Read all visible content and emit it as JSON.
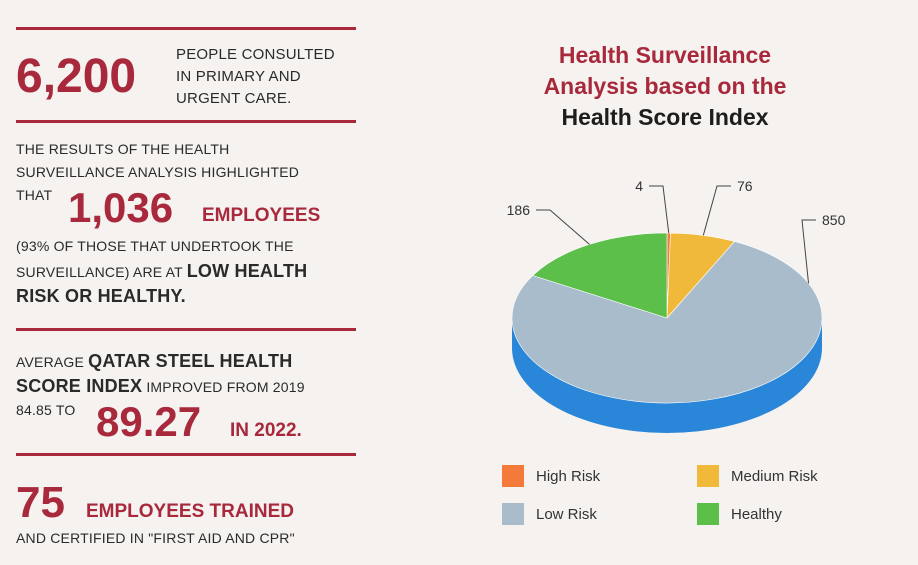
{
  "stats": {
    "consulted": {
      "number": "6,200",
      "text_lines": [
        "PEOPLE CONSULTED",
        "IN PRIMARY AND",
        "URGENT CARE."
      ]
    },
    "analysis": {
      "line1": "THE RESULTS OF THE HEALTH",
      "line2": "SURVEILLANCE ANALYSIS HIGHLIGHTED",
      "line3": "THAT",
      "number": "1,036",
      "number_suffix": "EMPLOYEES",
      "line4": "(93% OF THOSE THAT UNDERTOOK THE",
      "line5_prefix": "SURVEILLANCE) ARE AT",
      "line5_bold": "LOW HEALTH",
      "line6_bold": "RISK OR HEALTHY."
    },
    "score": {
      "line1_prefix": "AVERAGE",
      "line1_bold": "QATAR STEEL HEALTH",
      "line2_bold": "SCORE INDEX",
      "line2_suffix": "IMPROVED FROM 2019",
      "line3_prefix": "84.85 TO",
      "number": "89.27",
      "number_suffix": "IN 2022."
    },
    "trained": {
      "number": "75",
      "number_suffix": "EMPLOYEES TRAINED",
      "line2": "AND CERTIFIED IN \"FIRST AID AND CPR\""
    }
  },
  "chart_data": {
    "type": "pie",
    "title_line1": "Health Surveillance",
    "title_line2": "Analysis based on the",
    "title_line3": "Health Score Index",
    "categories": [
      "High Risk",
      "Medium Risk",
      "Low Risk",
      "Healthy"
    ],
    "values": [
      4,
      76,
      850,
      186
    ],
    "colors": [
      "#f47a3a",
      "#f0b93a",
      "#a8bccc",
      "#5cbf4a"
    ],
    "side_color": "#2a86d8",
    "legend_position": "bottom",
    "three_d": true
  }
}
